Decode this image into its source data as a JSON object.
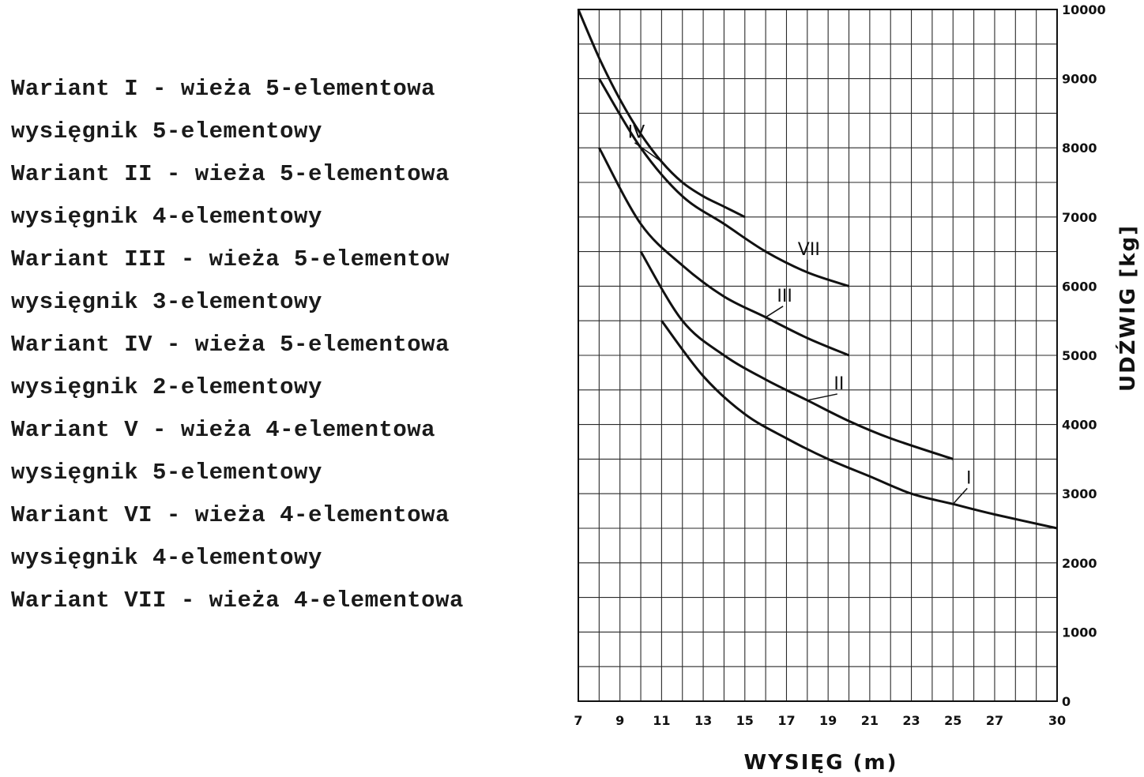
{
  "legend_lines": [
    "Wariant I - wieża 5-elementowa",
    "wysięgnik 5-elementowy",
    "Wariant II - wieża 5-elementowa",
    "wysięgnik 4-elementowy",
    "Wariant III - wieża 5-elementow",
    "wysięgnik 3-elementowy",
    "Wariant IV - wieża 5-elementowa",
    "wysięgnik 2-elementowy",
    "Wariant V - wieża 4-elementowa",
    "wysięgnik 5-elementowy",
    "Wariant VI - wieża 4-elementowa",
    "wysięgnik 4-elementowy",
    "Wariant VII - wieża 4-elementowa"
  ],
  "chart_data": {
    "type": "line",
    "title": "",
    "xlabel": "WYSIĘG (m)",
    "ylabel": "UDŹWIG [kg]",
    "xlim": [
      7,
      30
    ],
    "ylim": [
      0,
      10000
    ],
    "x_ticks": [
      "7",
      "9",
      "11",
      "13",
      "15",
      "17",
      "19",
      "21",
      "23",
      "25",
      "27",
      "30"
    ],
    "y_ticks": [
      "0",
      "1000",
      "2000",
      "3000",
      "4000",
      "5000",
      "6000",
      "7000",
      "8000",
      "9000",
      "10000"
    ],
    "grid": true,
    "series": [
      {
        "name": "IV",
        "x": [
          7,
          8,
          9,
          10,
          11,
          12,
          13,
          14,
          15
        ],
        "y": [
          10000,
          9300,
          8700,
          8200,
          7800,
          7500,
          7300,
          7150,
          7000
        ]
      },
      {
        "name": "VII",
        "x": [
          8,
          10,
          12,
          14,
          16,
          18,
          20
        ],
        "y": [
          9000,
          8000,
          7300,
          6900,
          6500,
          6200,
          6000
        ]
      },
      {
        "name": "III",
        "x": [
          8,
          10,
          12,
          14,
          16,
          18,
          20
        ],
        "y": [
          8000,
          6900,
          6300,
          5850,
          5550,
          5250,
          5000
        ]
      },
      {
        "name": "II",
        "x": [
          10,
          12,
          14,
          16,
          18,
          20,
          22,
          25
        ],
        "y": [
          6500,
          5500,
          5000,
          4650,
          4350,
          4050,
          3800,
          3500
        ]
      },
      {
        "name": "I",
        "x": [
          11,
          13,
          15,
          17,
          19,
          21,
          23,
          25,
          27,
          30
        ],
        "y": [
          5500,
          4700,
          4150,
          3800,
          3500,
          3250,
          3000,
          2850,
          2700,
          2500
        ]
      }
    ]
  }
}
